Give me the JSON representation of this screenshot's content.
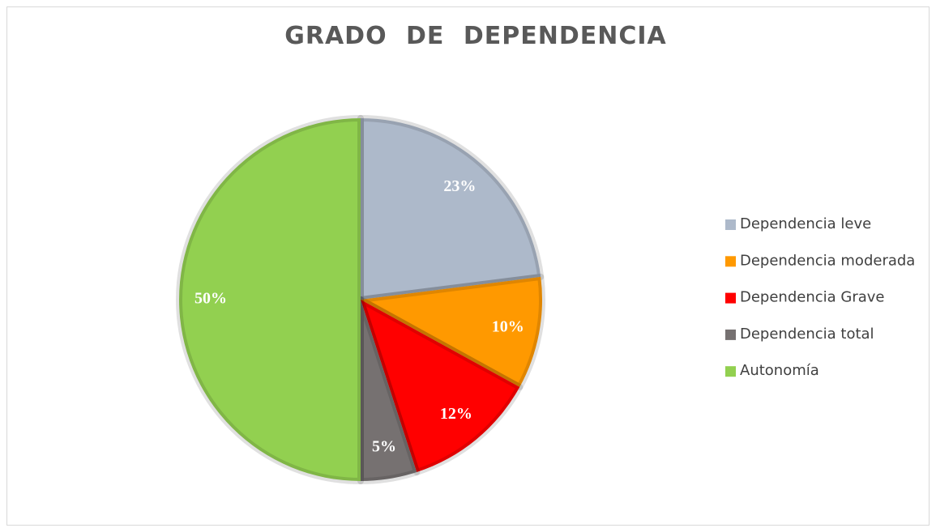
{
  "chart_data": {
    "type": "pie",
    "title": "GRADO DE DEPENDENCIA",
    "categories": [
      "Dependencia leve",
      "Dependencia moderada",
      "Dependencia Grave",
      "Dependencia total",
      "Autonomía"
    ],
    "values": [
      23,
      10,
      12,
      5,
      50
    ],
    "value_labels": [
      "23%",
      "10%",
      "12%",
      "5%",
      "50%"
    ],
    "colors": [
      "#adb9ca",
      "#ff9900",
      "#ff0000",
      "#767171",
      "#92d050"
    ],
    "legend": "right"
  }
}
